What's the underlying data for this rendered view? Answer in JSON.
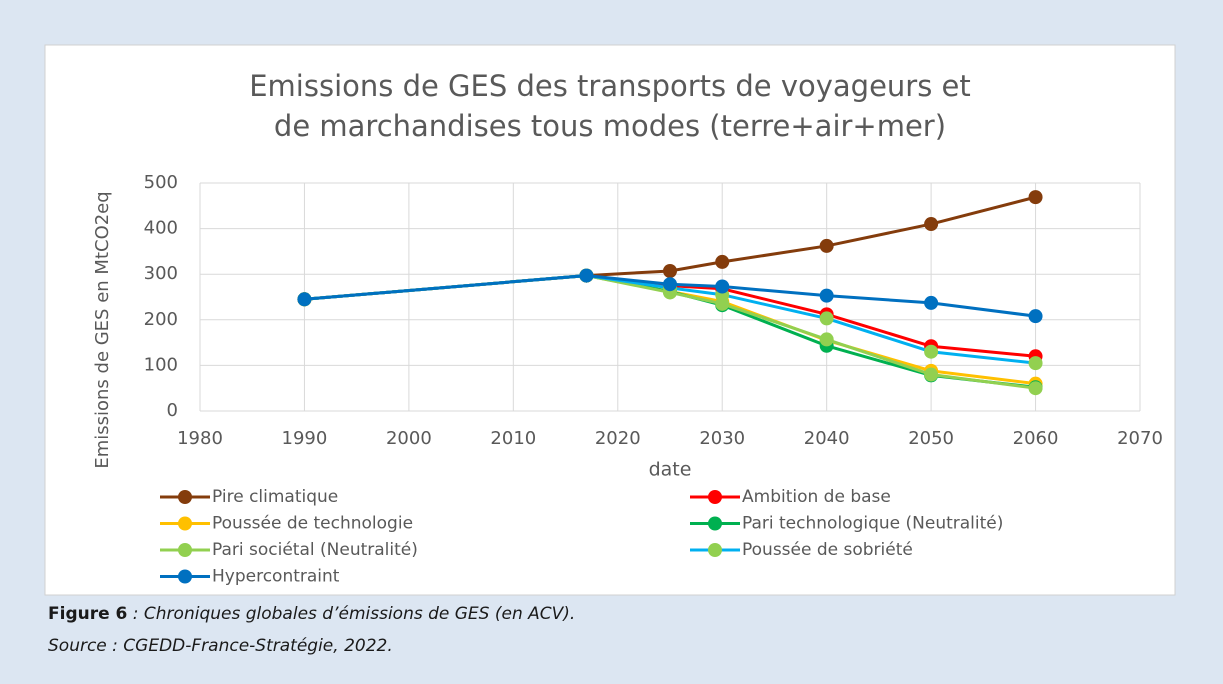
{
  "chart_data": {
    "type": "line",
    "title": [
      "Emissions de GES des transports de voyageurs et",
      "de marchandises tous modes (terre+air+mer)"
    ],
    "x_label": "date",
    "y_label": "Emissions de GES en MtCO2eq",
    "x": [
      1990,
      2017,
      2025,
      2030,
      2040,
      2050,
      2060
    ],
    "xlim": [
      1980,
      2070
    ],
    "xticks": [
      1980,
      1990,
      2000,
      2010,
      2020,
      2030,
      2040,
      2050,
      2060,
      2070
    ],
    "ylim": [
      0,
      500
    ],
    "yticks": [
      0,
      100,
      200,
      300,
      400,
      500
    ],
    "grid": true,
    "series": [
      {
        "name": "Pire climatique",
        "color": "#843c0c",
        "marker_color": "#843c0c",
        "values": [
          245,
          297,
          307,
          327,
          362,
          410,
          469
        ]
      },
      {
        "name": "Ambition de base",
        "color": "#ff0000",
        "marker_color": "#ff0000",
        "values": [
          245,
          297,
          275,
          268,
          212,
          142,
          120
        ]
      },
      {
        "name": "Poussée de technologie",
        "color": "#ffc000",
        "marker_color": "#ffc000",
        "values": [
          245,
          297,
          262,
          240,
          155,
          88,
          60
        ]
      },
      {
        "name": "Pari technologique (Neutralité)",
        "color": "#00b050",
        "marker_color": "#00b050",
        "values": [
          245,
          297,
          262,
          232,
          143,
          78,
          52
        ]
      },
      {
        "name": "Pari sociétal (Neutralité)",
        "color": "#92d050",
        "marker_color": "#92d050",
        "values": [
          245,
          297,
          260,
          235,
          157,
          80,
          50
        ]
      },
      {
        "name": "Poussée de sobriété",
        "color": "#00b0f0",
        "marker_color": "#92d050",
        "values": [
          245,
          297,
          270,
          255,
          203,
          130,
          105
        ]
      },
      {
        "name": "Hypercontraint",
        "color": "#0070c0",
        "marker_color": "#0070c0",
        "values": [
          245,
          297,
          278,
          273,
          253,
          237,
          208
        ]
      }
    ]
  },
  "caption": {
    "label": "Figure 6",
    "text": " : Chroniques globales d’émissions de GES (en ACV).",
    "source": "Source : CGEDD-France-Stratégie, 2022."
  }
}
